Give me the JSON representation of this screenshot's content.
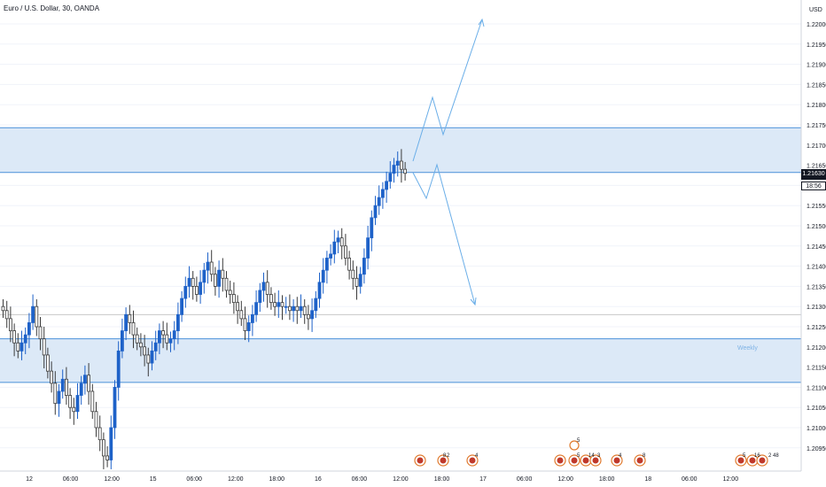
{
  "header": {
    "title": "Euro / U.S. Dollar, 30, OANDA",
    "currency": "USD"
  },
  "price_axis": {
    "ticks": [
      "1.22000",
      "1.21950",
      "1.21900",
      "1.21850",
      "1.21800",
      "1.21750",
      "1.21700",
      "1.21650",
      "1.21600",
      "1.21550",
      "1.21500",
      "1.21450",
      "1.21400",
      "1.21350",
      "1.21300",
      "1.21250",
      "1.21200",
      "1.21150",
      "1.21100",
      "1.21050",
      "1.21000",
      "1.20950"
    ],
    "current_price": "1.21630",
    "countdown": "18:56"
  },
  "time_axis": {
    "ticks": [
      "12",
      "06:00",
      "12:00",
      "15",
      "06:00",
      "12:00",
      "18:00",
      "16",
      "06:00",
      "12:00",
      "18:00",
      "17",
      "06:00",
      "12:00",
      "18:00",
      "18",
      "06:00",
      "12:00"
    ]
  },
  "annotations": {
    "zone_label": "Weekly"
  },
  "events": {
    "labels": [
      "8",
      "2",
      "4",
      "5",
      "5",
      "14",
      "3",
      "4",
      "8",
      "5",
      "16",
      "2",
      "48"
    ]
  },
  "colors": {
    "bull": "#1e62c9",
    "bear_outline": "#3a3a3a",
    "zone_fill": "#dce9f7",
    "zone_line": "#4a90d9",
    "projection": "#6aaee8",
    "grid": "#f0f3fa"
  },
  "chart_data": {
    "type": "candlestick",
    "title": "Euro / U.S. Dollar, 30, OANDA",
    "ylim": [
      1.2093,
      1.2203
    ],
    "zones": [
      {
        "name": "upper",
        "from": 1.21632,
        "to": 1.21743
      },
      {
        "name": "Weekly",
        "from": 1.21112,
        "to": 1.2122
      }
    ],
    "levels": [
      1.21632,
      1.2128
    ],
    "closes": [
      1.2129,
      1.2127,
      1.2124,
      1.2121,
      1.2119,
      1.2121,
      1.2123,
      1.2126,
      1.213,
      1.2125,
      1.2122,
      1.2118,
      1.2114,
      1.2111,
      1.2106,
      1.2109,
      1.2112,
      1.2108,
      1.2105,
      1.2104,
      1.2108,
      1.2111,
      1.2113,
      1.2109,
      1.2104,
      1.21,
      1.2097,
      1.2093,
      1.2092,
      1.21,
      1.211,
      1.2119,
      1.2124,
      1.2128,
      1.2126,
      1.2123,
      1.2121,
      1.212,
      1.2118,
      1.2116,
      1.2119,
      1.2121,
      1.2124,
      1.2123,
      1.2121,
      1.2122,
      1.2124,
      1.2128,
      1.2132,
      1.2135,
      1.2137,
      1.2135,
      1.2133,
      1.2136,
      1.2139,
      1.2141,
      1.2138,
      1.2135,
      1.2139,
      1.2137,
      1.2134,
      1.2133,
      1.2131,
      1.2129,
      1.2127,
      1.2124,
      1.2126,
      1.2128,
      1.2131,
      1.2134,
      1.2136,
      1.2133,
      1.2131,
      1.213,
      1.2131,
      1.213,
      1.213,
      1.2129,
      1.213,
      1.2129,
      1.213,
      1.2128,
      1.2127,
      1.2129,
      1.2132,
      1.2136,
      1.2139,
      1.2142,
      1.2143,
      1.2146,
      1.2147,
      1.2145,
      1.2142,
      1.2139,
      1.2137,
      1.2135,
      1.2138,
      1.2142,
      1.2147,
      1.2152,
      1.2155,
      1.2157,
      1.2159,
      1.2161,
      1.2163,
      1.2165,
      1.2166,
      1.2164,
      1.2163
    ]
  }
}
